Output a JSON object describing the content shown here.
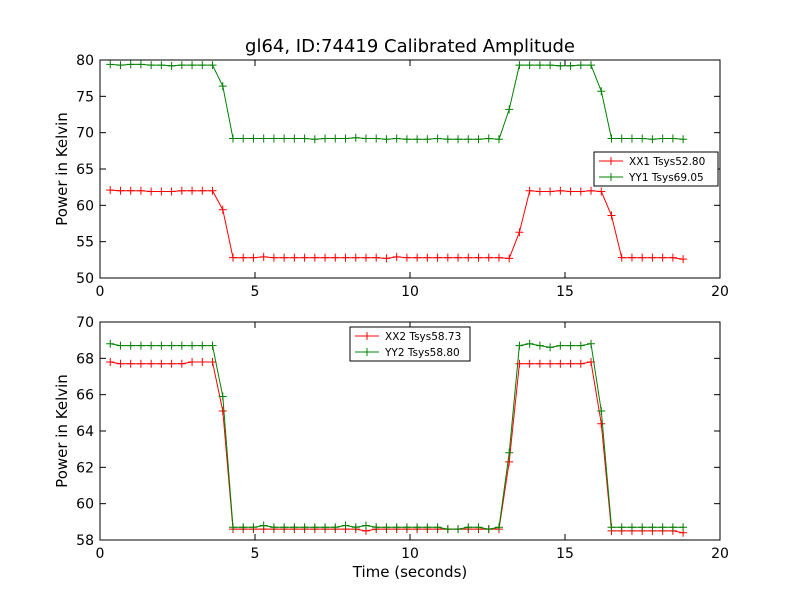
{
  "figure": {
    "title": "gl64, ID:74419 Calibrated Amplitude"
  },
  "chart_data": [
    {
      "type": "line",
      "title": "gl64, ID:74419 Calibrated Amplitude",
      "xlabel": "",
      "ylabel": "Power in Kelvin",
      "xlim": [
        0,
        20
      ],
      "ylim": [
        50,
        80
      ],
      "xticks": [
        0,
        5,
        10,
        15,
        20
      ],
      "yticks": [
        50,
        55,
        60,
        65,
        70,
        75,
        80
      ],
      "grid": false,
      "legend_position": "center-right",
      "x": [
        0.33,
        0.66,
        0.99,
        1.32,
        1.65,
        1.98,
        2.31,
        2.64,
        2.97,
        3.3,
        3.63,
        3.96,
        4.29,
        4.62,
        4.95,
        5.28,
        5.61,
        5.94,
        6.27,
        6.6,
        6.93,
        7.26,
        7.59,
        7.92,
        8.25,
        8.58,
        8.91,
        9.24,
        9.57,
        9.9,
        10.23,
        10.56,
        10.89,
        11.22,
        11.55,
        11.88,
        12.21,
        12.54,
        12.87,
        13.2,
        13.53,
        13.86,
        14.19,
        14.52,
        14.85,
        15.18,
        15.51,
        15.84,
        16.17,
        16.5,
        16.83,
        17.16,
        17.49,
        17.82,
        18.15,
        18.48,
        18.81
      ],
      "series": [
        {
          "name": "XX1 Tsys52.80",
          "color": "#ff0000",
          "values": [
            62.1,
            62.0,
            62.0,
            62.0,
            61.9,
            61.9,
            61.9,
            62.0,
            62.0,
            62.0,
            62.0,
            59.4,
            52.8,
            52.8,
            52.8,
            52.9,
            52.8,
            52.8,
            52.8,
            52.8,
            52.8,
            52.8,
            52.8,
            52.8,
            52.8,
            52.8,
            52.8,
            52.7,
            52.9,
            52.8,
            52.8,
            52.8,
            52.8,
            52.8,
            52.8,
            52.8,
            52.8,
            52.8,
            52.8,
            52.7,
            56.3,
            62.0,
            61.9,
            61.9,
            62.0,
            61.9,
            61.9,
            62.0,
            61.9,
            58.6,
            52.8,
            52.8,
            52.8,
            52.8,
            52.8,
            52.8,
            52.6
          ]
        },
        {
          "name": "YY1 Tsys69.05",
          "color": "#008000",
          "values": [
            79.4,
            79.3,
            79.4,
            79.4,
            79.3,
            79.3,
            79.2,
            79.3,
            79.3,
            79.3,
            79.3,
            76.4,
            69.2,
            69.2,
            69.2,
            69.2,
            69.2,
            69.2,
            69.2,
            69.2,
            69.1,
            69.2,
            69.2,
            69.2,
            69.3,
            69.2,
            69.2,
            69.1,
            69.2,
            69.1,
            69.1,
            69.1,
            69.2,
            69.1,
            69.1,
            69.1,
            69.1,
            69.2,
            69.1,
            73.2,
            79.3,
            79.3,
            79.3,
            79.3,
            79.2,
            79.2,
            79.3,
            79.3,
            75.7,
            69.2,
            69.2,
            69.2,
            69.2,
            69.1,
            69.2,
            69.2,
            69.1
          ]
        }
      ]
    },
    {
      "type": "line",
      "title": "",
      "xlabel": "Time (seconds)",
      "ylabel": "Power in Kelvin",
      "xlim": [
        0,
        20
      ],
      "ylim": [
        58,
        70
      ],
      "xticks": [
        0,
        5,
        10,
        15,
        20
      ],
      "yticks": [
        58,
        60,
        62,
        64,
        66,
        68,
        70
      ],
      "grid": false,
      "legend_position": "top-center",
      "x": [
        0.33,
        0.66,
        0.99,
        1.32,
        1.65,
        1.98,
        2.31,
        2.64,
        2.97,
        3.3,
        3.63,
        3.96,
        4.29,
        4.62,
        4.95,
        5.28,
        5.61,
        5.94,
        6.27,
        6.6,
        6.93,
        7.26,
        7.59,
        7.92,
        8.25,
        8.58,
        8.91,
        9.24,
        9.57,
        9.9,
        10.23,
        10.56,
        10.89,
        11.22,
        11.55,
        11.88,
        12.21,
        12.54,
        12.87,
        13.2,
        13.53,
        13.86,
        14.19,
        14.52,
        14.85,
        15.18,
        15.51,
        15.84,
        16.17,
        16.5,
        16.83,
        17.16,
        17.49,
        17.82,
        18.15,
        18.48,
        18.81
      ],
      "series": [
        {
          "name": "XX2 Tsys58.73",
          "color": "#ff0000",
          "values": [
            67.8,
            67.7,
            67.7,
            67.7,
            67.7,
            67.7,
            67.7,
            67.7,
            67.8,
            67.8,
            67.8,
            65.1,
            58.6,
            58.6,
            58.6,
            58.6,
            58.6,
            58.6,
            58.6,
            58.6,
            58.6,
            58.6,
            58.6,
            58.6,
            58.6,
            58.5,
            58.6,
            58.6,
            58.6,
            58.6,
            58.6,
            58.6,
            58.6,
            58.6,
            58.6,
            58.6,
            58.6,
            58.6,
            58.6,
            62.3,
            67.7,
            67.7,
            67.7,
            67.7,
            67.7,
            67.7,
            67.7,
            67.8,
            64.4,
            58.5,
            58.5,
            58.5,
            58.5,
            58.5,
            58.5,
            58.5,
            58.4
          ]
        },
        {
          "name": "YY2 Tsys58.80",
          "color": "#008000",
          "values": [
            68.8,
            68.7,
            68.7,
            68.7,
            68.7,
            68.7,
            68.7,
            68.7,
            68.7,
            68.7,
            68.7,
            65.9,
            58.7,
            58.7,
            58.7,
            58.8,
            58.7,
            58.7,
            58.7,
            58.7,
            58.7,
            58.7,
            58.7,
            58.8,
            58.7,
            58.8,
            58.7,
            58.7,
            58.7,
            58.7,
            58.7,
            58.7,
            58.7,
            58.6,
            58.6,
            58.7,
            58.7,
            58.6,
            58.7,
            62.8,
            68.7,
            68.8,
            68.7,
            68.6,
            68.7,
            68.7,
            68.7,
            68.8,
            65.1,
            58.7,
            58.7,
            58.7,
            58.7,
            58.7,
            58.7,
            58.7,
            58.7
          ]
        }
      ]
    }
  ]
}
